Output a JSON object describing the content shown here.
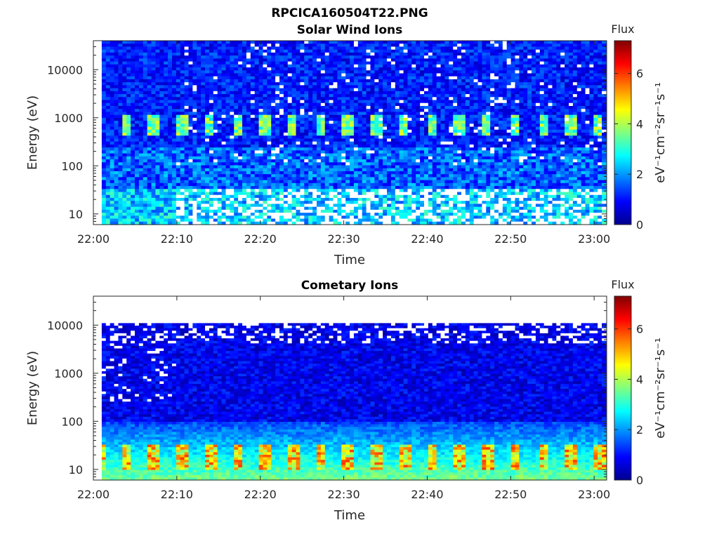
{
  "figure_title": "RPCICA160504T22.PNG",
  "chart_data": [
    {
      "type": "heatmap",
      "title": "Solar Wind Ions",
      "xlabel": "Time",
      "ylabel": "Energy (eV)",
      "x_ticks": [
        "22:00",
        "22:10",
        "22:20",
        "22:30",
        "22:40",
        "22:50",
        "23:00"
      ],
      "x_range_minutes": [
        0,
        61.5
      ],
      "y_scale": "log",
      "y_ticks": [
        "10",
        "100",
        "1000",
        "10000"
      ],
      "y_range_eV": [
        6,
        40000
      ],
      "data_x_start_minutes": 1,
      "data_y_top_eV": 40000,
      "colorbar": {
        "label": "eV⁻¹cm⁻²sr⁻¹s⁻¹",
        "title": "Flux",
        "range": [
          0,
          7.3
        ],
        "ticks": [
          "0",
          "2",
          "4",
          "6"
        ]
      },
      "colormap": "jet",
      "description_of_values": "background flux ~0.5-1.5 above 100 eV; periodic peaks ~3-4.5 near 700 eV every ~3 min; 2-3 below 30 eV with many empty (white) bins"
    },
    {
      "type": "heatmap",
      "title": "Cometary Ions",
      "xlabel": "Time",
      "ylabel": "Energy (eV)",
      "x_ticks": [
        "22:00",
        "22:10",
        "22:20",
        "22:30",
        "22:40",
        "22:50",
        "23:00"
      ],
      "x_range_minutes": [
        0,
        61.5
      ],
      "y_scale": "log",
      "y_ticks": [
        "10",
        "100",
        "1000",
        "10000"
      ],
      "y_range_eV": [
        6,
        40000
      ],
      "data_x_start_minutes": 1,
      "data_y_top_eV": 11000,
      "colorbar": {
        "label": "eV⁻¹cm⁻²sr⁻¹s⁻¹",
        "title": "Flux",
        "range": [
          0,
          7.3
        ],
        "ticks": [
          "0",
          "2",
          "4",
          "6"
        ]
      },
      "colormap": "jet",
      "description_of_values": "low flux ~0.3-1.5 above 100 eV with sparse empty bins near 10000 eV; flux rising to 2-3 at 30-100 eV; periodic peaks 4-6 near 10-30 eV every ~3 min"
    }
  ]
}
